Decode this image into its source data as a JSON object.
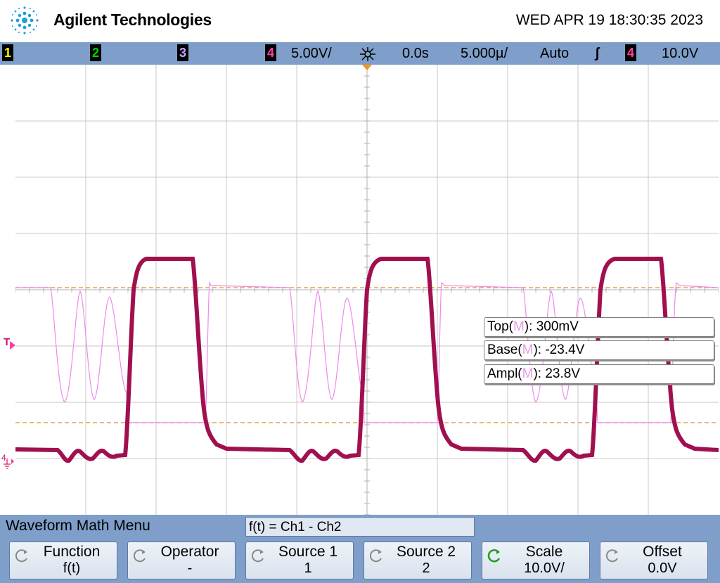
{
  "header": {
    "brand": "Agilent Technologies",
    "datetime": "WED APR 19 18:30:35 2023"
  },
  "statusbar": {
    "ch1": "1",
    "ch2": "2",
    "ch3": "3",
    "ch4": "4",
    "ch4_scale": "5.00V/",
    "delay": "0.0s",
    "timebase": "5.000µ/",
    "trigger_mode": "Auto",
    "trigger_slope_symbol": "ʃ",
    "trigger_source": "4",
    "trigger_level": "10.0V"
  },
  "screen": {
    "trigger_marker": "T",
    "ground_marker": "4"
  },
  "measurements": [
    {
      "name": "Top",
      "source": "M",
      "value": "300mV"
    },
    {
      "name": "Base",
      "source": "M",
      "value": "-23.4V"
    },
    {
      "name": "Ampl",
      "source": "M",
      "value": "23.8V"
    }
  ],
  "menu": {
    "title": "Waveform Math Menu",
    "formula": "f(t) = Ch1 - Ch2",
    "softkeys": [
      {
        "label": "Function",
        "value": "f(t)"
      },
      {
        "label": "Operator",
        "value": "-"
      },
      {
        "label": "Source 1",
        "value": "1"
      },
      {
        "label": "Source 2",
        "value": "2"
      },
      {
        "label": "Scale",
        "value": "10.0V/"
      },
      {
        "label": "Offset",
        "value": "0.0V"
      }
    ]
  },
  "colors": {
    "ch1": "#f2f200",
    "ch2": "#00d400",
    "ch3": "#c7a3ff",
    "ch4": "#ff3fa0",
    "math_trace": "#ee82ee",
    "ch4_trace": "#a0104f",
    "cursor_line": "#e8a050",
    "grid": "#c8c8c8"
  }
}
